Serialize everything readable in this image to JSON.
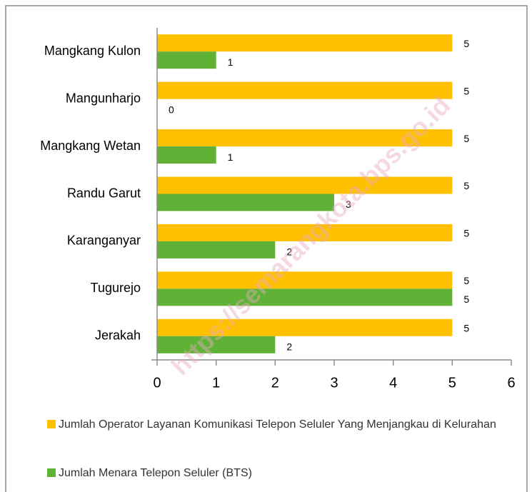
{
  "chart_data": {
    "type": "hbar",
    "categories": [
      "Mangkang Kulon",
      "Mangunharjo",
      "Mangkang Wetan",
      "Randu Garut",
      "Karanganyar",
      "Tugurejo",
      "Jerakah"
    ],
    "series": [
      {
        "name": "Jumlah Operator Layanan Komunikasi Telepon Seluler Yang Menjangkau di Kelurahan",
        "color": "#ffc000",
        "values": [
          5,
          5,
          5,
          5,
          5,
          5,
          5
        ]
      },
      {
        "name": "Jumlah Menara Telepon Seluler (BTS)",
        "color": "#5fb236",
        "values": [
          1,
          0,
          1,
          3,
          2,
          5,
          2
        ]
      }
    ],
    "xlim": [
      0,
      6
    ],
    "xticks": [
      0,
      1,
      2,
      3,
      4,
      5,
      6
    ],
    "watermark": "https://semarangkota.bps.go.id"
  }
}
